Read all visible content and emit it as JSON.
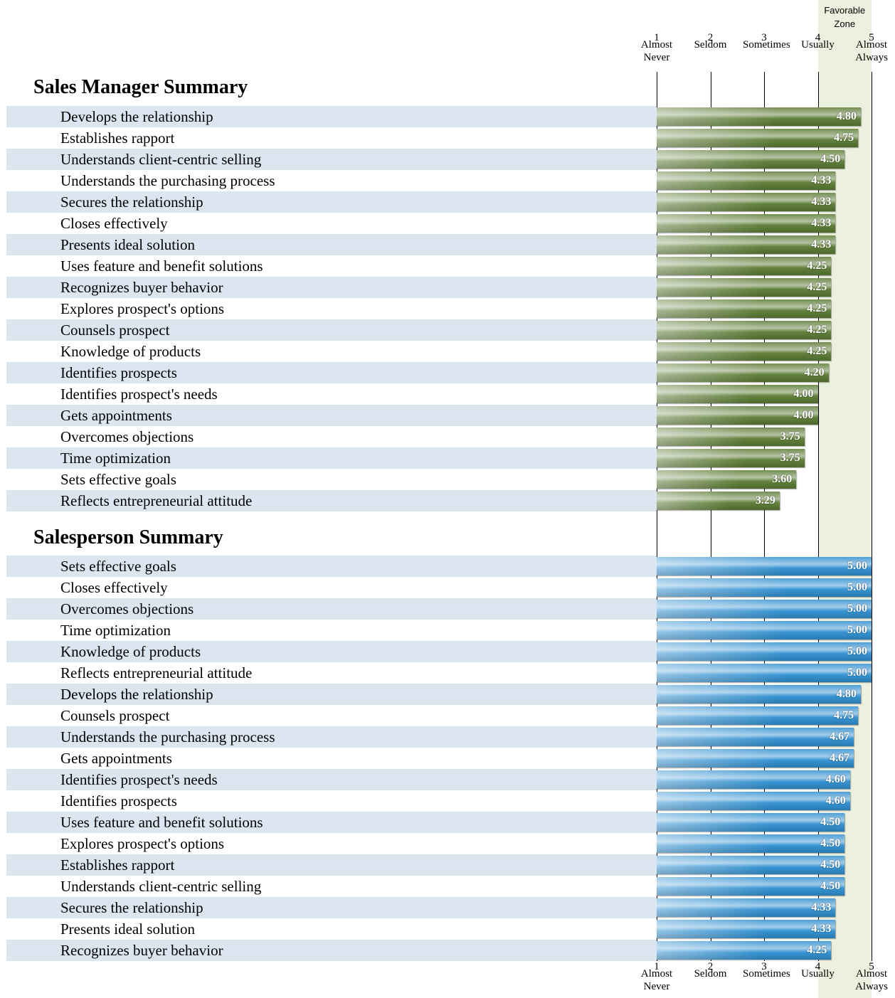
{
  "favorable_zone": {
    "label": "Favorable Zone",
    "from": 4,
    "to": 5
  },
  "chart_data": [
    {
      "type": "bar",
      "title": "Sales Manager Summary",
      "color": "#5b7a33",
      "xlim": [
        1,
        5
      ],
      "xticks": [
        {
          "value": 1,
          "label": "Almost Never"
        },
        {
          "value": 2,
          "label": "Seldom"
        },
        {
          "value": 3,
          "label": "Sometimes"
        },
        {
          "value": 4,
          "label": "Usually"
        },
        {
          "value": 5,
          "label": "Almost Always"
        }
      ],
      "categories": [
        "Develops the relationship",
        "Establishes rapport",
        "Understands client-centric selling",
        "Understands the purchasing process",
        "Secures the relationship",
        "Closes effectively",
        "Presents ideal solution",
        "Uses feature and benefit solutions",
        "Recognizes buyer behavior",
        "Explores prospect's options",
        "Counsels prospect",
        "Knowledge of products",
        "Identifies prospects",
        "Identifies prospect's needs",
        "Gets appointments",
        "Overcomes objections",
        "Time optimization",
        "Sets effective goals",
        "Reflects entrepreneurial attitude"
      ],
      "values": [
        4.8,
        4.75,
        4.5,
        4.33,
        4.33,
        4.33,
        4.33,
        4.25,
        4.25,
        4.25,
        4.25,
        4.25,
        4.2,
        4.0,
        4.0,
        3.75,
        3.75,
        3.6,
        3.29
      ],
      "value_labels": [
        "4.80",
        "4.75",
        "4.50",
        "4.33",
        "4.33",
        "4.33",
        "4.33",
        "4.25",
        "4.25",
        "4.25",
        "4.25",
        "4.25",
        "4.20",
        "4.00",
        "4.00",
        "3.75",
        "3.75",
        "3.60",
        "3.29"
      ]
    },
    {
      "type": "bar",
      "title": "Salesperson Summary",
      "color": "#2f8fd0",
      "xlim": [
        1,
        5
      ],
      "xticks": [
        {
          "value": 1,
          "label": "Almost Never"
        },
        {
          "value": 2,
          "label": "Seldom"
        },
        {
          "value": 3,
          "label": "Sometimes"
        },
        {
          "value": 4,
          "label": "Usually"
        },
        {
          "value": 5,
          "label": "Almost Always"
        }
      ],
      "categories": [
        "Sets effective goals",
        "Closes effectively",
        "Overcomes objections",
        "Time optimization",
        "Knowledge of products",
        "Reflects entrepreneurial attitude",
        "Develops the relationship",
        "Counsels prospect",
        "Understands the purchasing process",
        "Gets appointments",
        "Identifies prospect's needs",
        "Identifies prospects",
        "Uses feature and benefit solutions",
        "Explores prospect's options",
        "Establishes rapport",
        "Understands client-centric selling",
        "Secures the relationship",
        "Presents ideal solution",
        "Recognizes buyer behavior"
      ],
      "values": [
        5,
        5,
        5,
        5,
        5,
        5,
        4.8,
        4.75,
        4.67,
        4.67,
        4.6,
        4.6,
        4.5,
        4.5,
        4.5,
        4.5,
        4.33,
        4.33,
        4.25
      ],
      "value_labels": [
        "5.00",
        "5.00",
        "5.00",
        "5.00",
        "5.00",
        "5.00",
        "4.80",
        "4.75",
        "4.67",
        "4.67",
        "4.60",
        "4.60",
        "4.50",
        "4.50",
        "4.50",
        "4.50",
        "4.33",
        "4.33",
        "4.25"
      ]
    }
  ]
}
